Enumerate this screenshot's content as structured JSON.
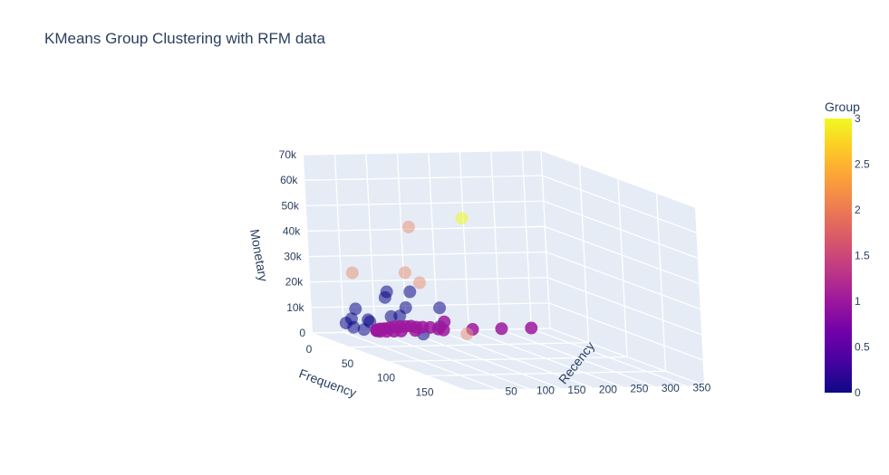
{
  "chart_data": {
    "type": "scatter",
    "title": "KMeans Group Clustering with RFM data",
    "axes": {
      "x": {
        "label": "Frequency",
        "ticks": [
          "0",
          "50",
          "100",
          "150"
        ],
        "range": [
          0,
          200
        ]
      },
      "y": {
        "label": "Recency",
        "ticks": [
          "50",
          "100",
          "150",
          "200",
          "250",
          "300",
          "350"
        ],
        "range": [
          0,
          380
        ]
      },
      "z": {
        "label": "Monetary",
        "ticks": [
          "0",
          "10k",
          "20k",
          "30k",
          "40k",
          "50k",
          "60k",
          "70k"
        ],
        "range": [
          0,
          70000
        ]
      }
    },
    "colorbar": {
      "title": "Group",
      "ticks": [
        "0",
        "0.5",
        "1",
        "1.5",
        "2",
        "2.5",
        "3"
      ],
      "range": [
        0,
        3
      ],
      "colors": [
        "#0d0887",
        "#46039f",
        "#7201a8",
        "#9c179e",
        "#bd3786",
        "#d8576b",
        "#ed7953",
        "#fb9f3a",
        "#fdca26",
        "#f0f921"
      ]
    },
    "groups": [
      {
        "group": 0,
        "color": "#0d0887",
        "points": [
          [
            2,
            80,
            1200
          ],
          [
            5,
            60,
            2500
          ],
          [
            20,
            30,
            6000
          ],
          [
            40,
            15,
            10000
          ],
          [
            50,
            10,
            15000
          ],
          [
            60,
            20,
            11000
          ],
          [
            70,
            5,
            13000
          ],
          [
            65,
            40,
            21000
          ],
          [
            95,
            12,
            17000
          ],
          [
            110,
            8,
            19000
          ],
          [
            100,
            30,
            21000
          ],
          [
            120,
            60,
            23000
          ],
          [
            90,
            50,
            26000
          ],
          [
            80,
            25,
            25000
          ],
          [
            130,
            20,
            14000
          ],
          [
            140,
            35,
            18000
          ]
        ]
      },
      {
        "group": 1,
        "color": "#9c179e",
        "points": [
          [
            0,
            350,
            300
          ],
          [
            2,
            300,
            500
          ],
          [
            5,
            250,
            800
          ],
          [
            8,
            200,
            1100
          ],
          [
            12,
            150,
            1600
          ],
          [
            18,
            120,
            2200
          ],
          [
            25,
            100,
            3000
          ],
          [
            32,
            80,
            3800
          ],
          [
            40,
            60,
            4800
          ],
          [
            48,
            45,
            6000
          ],
          [
            56,
            35,
            7000
          ],
          [
            64,
            25,
            8200
          ],
          [
            72,
            20,
            9500
          ],
          [
            80,
            15,
            10500
          ],
          [
            88,
            10,
            11500
          ],
          [
            96,
            8,
            12800
          ],
          [
            104,
            6,
            14000
          ],
          [
            112,
            5,
            15000
          ],
          [
            120,
            4,
            16000
          ],
          [
            128,
            3,
            17000
          ],
          [
            136,
            2,
            17500
          ],
          [
            145,
            1,
            18500
          ],
          [
            155,
            1,
            19500
          ],
          [
            165,
            2,
            20000
          ],
          [
            150,
            30,
            21000
          ]
        ]
      },
      {
        "group": 2,
        "color": "#e9967a",
        "points": [
          [
            10,
            150,
            42000
          ],
          [
            40,
            20,
            28000
          ],
          [
            60,
            80,
            30000
          ],
          [
            120,
            30,
            33000
          ],
          [
            200,
            5,
            22000
          ]
        ]
      },
      {
        "group": 3,
        "color": "#f0f921",
        "points": [
          [
            205,
            0,
            68000
          ]
        ]
      }
    ]
  }
}
